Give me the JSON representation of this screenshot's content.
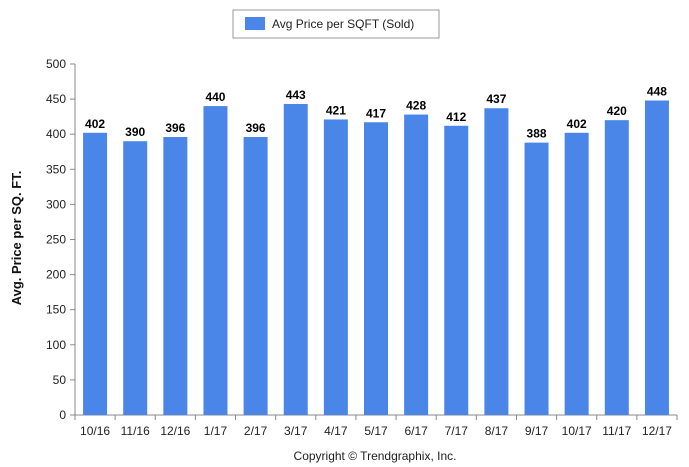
{
  "chart_data": {
    "type": "bar",
    "categories": [
      "10/16",
      "11/16",
      "12/16",
      "1/17",
      "2/17",
      "3/17",
      "4/17",
      "5/17",
      "6/17",
      "7/17",
      "8/17",
      "9/17",
      "10/17",
      "11/17",
      "12/17"
    ],
    "series": [
      {
        "name": "Avg Price per SQFT (Sold)",
        "values": [
          402,
          390,
          396,
          440,
          396,
          443,
          421,
          417,
          428,
          412,
          437,
          388,
          402,
          420,
          448
        ]
      }
    ],
    "data_labels": [
      "402",
      "390",
      "396",
      "440",
      "396",
      "443",
      "421",
      "417",
      "428",
      "412",
      "437",
      "388",
      "402",
      "420",
      "448"
    ],
    "ylabel": "Avg. Price per SQ. FT.",
    "xlabel": "",
    "ylim": [
      0,
      500
    ],
    "yticks": [
      0,
      50,
      100,
      150,
      200,
      250,
      300,
      350,
      400,
      450,
      500
    ],
    "grid": false,
    "legend": {
      "placement": "top-center",
      "label": "Avg Price per SQFT (Sold)"
    },
    "colors": {
      "bar": "#4a86e8",
      "axis": "#888888"
    }
  },
  "footer": {
    "copyright": "Copyright © Trendgraphix, Inc."
  }
}
